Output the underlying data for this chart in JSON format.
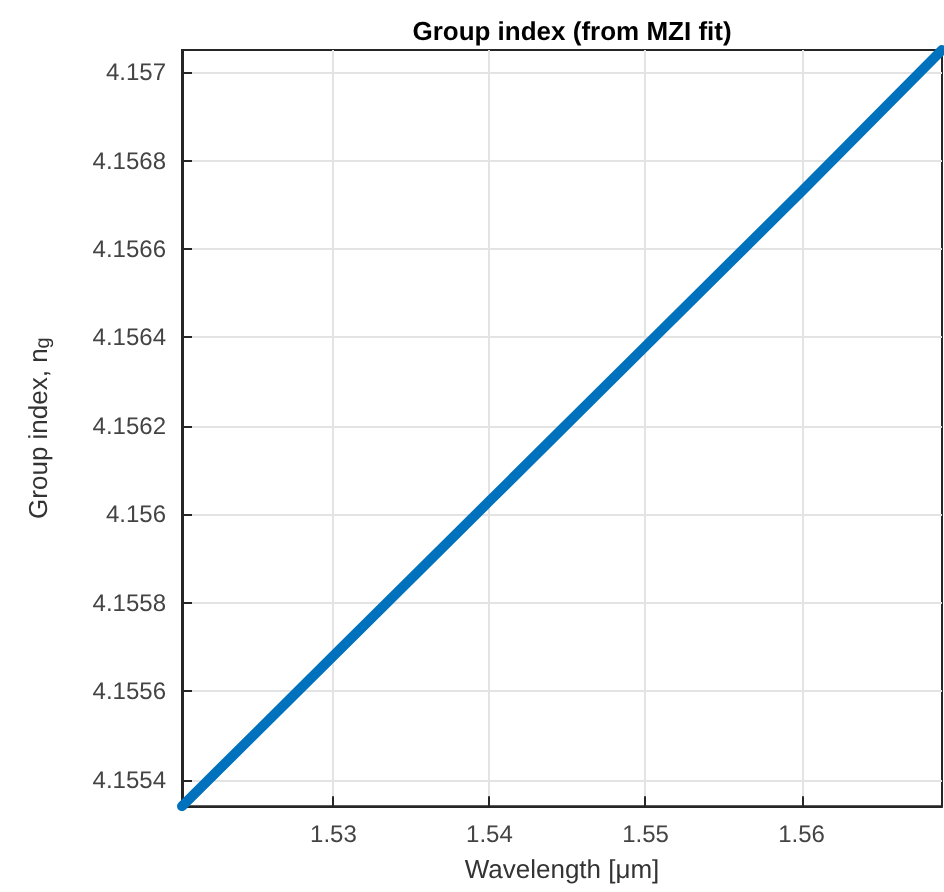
{
  "chart_data": {
    "type": "line",
    "title": "Group index (from MZI fit)",
    "xlabel": "Wavelength [μm]",
    "ylabel": "Group index, n$_{g}$",
    "x": [
      1.5203,
      1.53,
      1.54,
      1.55,
      1.56,
      1.569
    ],
    "series": [
      {
        "color": "#0072bd",
        "values": [
          4.15534,
          4.15568,
          4.15603,
          4.15638,
          4.15673,
          4.15705
        ]
      }
    ],
    "xlim": [
      1.5203,
      1.569
    ],
    "xticks": [
      1.53,
      1.54,
      1.55,
      1.56
    ],
    "ylim": [
      4.15534,
      4.15705
    ],
    "yticks": [
      4.1554,
      4.1556,
      4.1558,
      4.156,
      4.1562,
      4.1564,
      4.1566,
      4.1568,
      4.157
    ],
    "grid": true,
    "marker": "none",
    "line_style": "solid"
  }
}
